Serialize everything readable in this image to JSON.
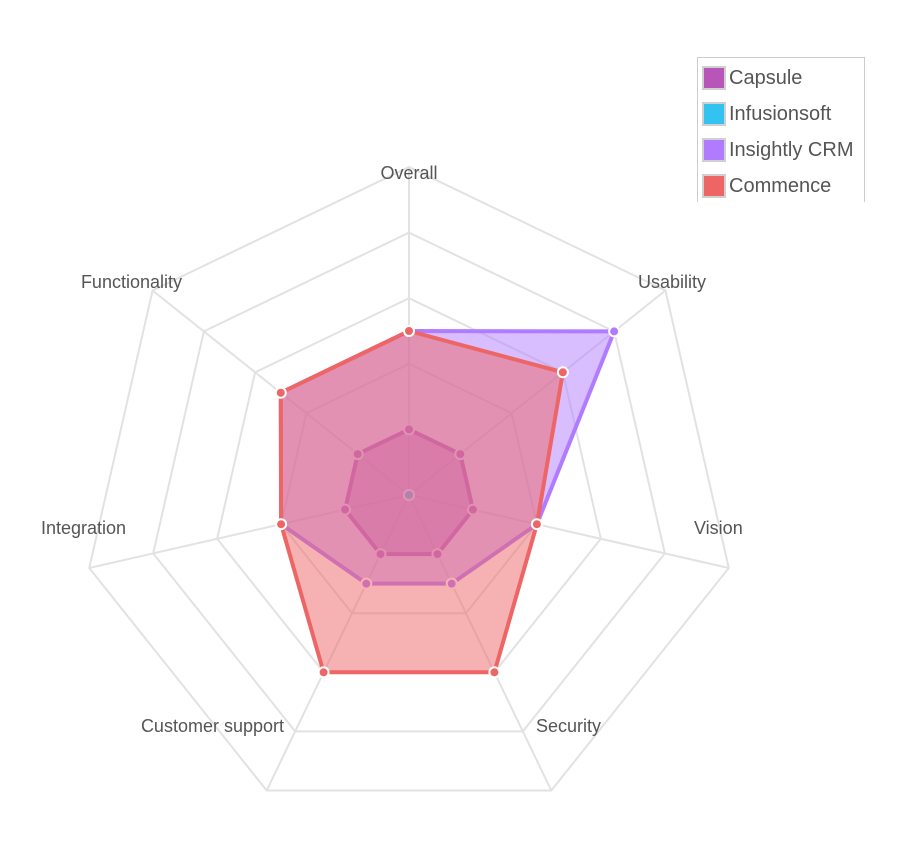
{
  "chart_data": {
    "type": "radar",
    "axes": [
      "Overall",
      "Usability",
      "Vision",
      "Security",
      "Customer support",
      "Integration",
      "Functionality"
    ],
    "rlim": [
      0,
      10
    ],
    "ticks": [
      2,
      4,
      6,
      8,
      10
    ],
    "grid": true,
    "legend_position": "top-right",
    "series": [
      {
        "name": "Capsule",
        "color": "#b855b8",
        "values": [
          2.0,
          2.0,
          2.0,
          2.0,
          2.0,
          2.0,
          2.0
        ]
      },
      {
        "name": "Infusionsoft",
        "color": "#33c3f0",
        "values": [
          0.0,
          0.0,
          0.0,
          0.0,
          0.0,
          0.0,
          0.0
        ]
      },
      {
        "name": "Insightly CRM",
        "color": "#b17bff",
        "values": [
          5.0,
          8.0,
          4.0,
          3.0,
          3.0,
          4.0,
          5.0
        ]
      },
      {
        "name": "Commence",
        "color": "#ee6565",
        "values": [
          5.0,
          6.0,
          4.0,
          6.0,
          6.0,
          4.0,
          5.0
        ]
      }
    ]
  }
}
